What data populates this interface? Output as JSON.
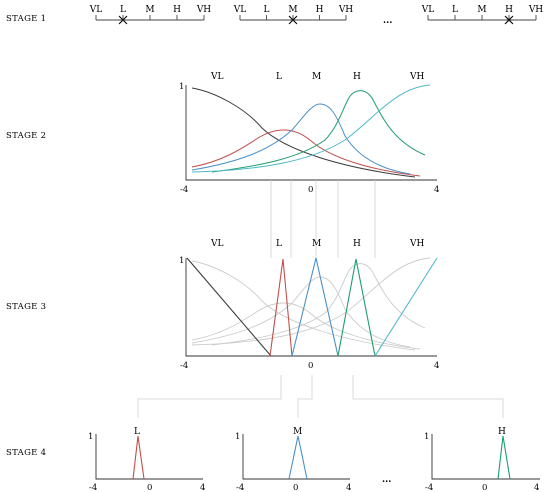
{
  "stages": [
    "STAGE 1",
    "STAGE 2",
    "STAGE 3",
    "STAGE 4"
  ],
  "terms": [
    "VL",
    "L",
    "M",
    "H",
    "VH"
  ],
  "stage1_scales": [
    {
      "terms": [
        "VL",
        "L",
        "M",
        "H",
        "VH"
      ],
      "selected": "L"
    },
    {
      "terms": [
        "VL",
        "L",
        "M",
        "H",
        "VH"
      ],
      "selected": "M"
    },
    {
      "terms": [
        "VL",
        "L",
        "M",
        "H",
        "VH"
      ],
      "selected": "H"
    }
  ],
  "ellipsis": "...",
  "axis": {
    "min_label": "-4",
    "mid_label": "0",
    "max_label": "4",
    "y_max_label": "1"
  },
  "colors": {
    "VL": "#3a3a3a",
    "L": "#c0504d",
    "M": "#4a90c8",
    "H": "#1f9e6e",
    "VH": "#4fb9c9",
    "ghost": "#cccccc"
  },
  "stage4_panels": [
    {
      "label": "L",
      "y_label": "1",
      "x_labels": [
        "-4",
        "0",
        "4"
      ]
    },
    {
      "label": "M",
      "y_label": "1",
      "x_labels": [
        "-4",
        "0",
        "4"
      ]
    },
    {
      "label": "H",
      "y_label": "1",
      "x_labels": [
        "-4",
        "0",
        "4"
      ]
    }
  ]
}
